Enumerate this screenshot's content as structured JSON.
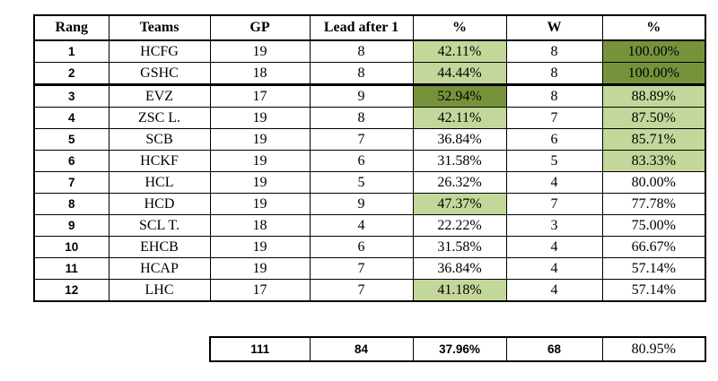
{
  "colors": {
    "light_green": "#c4d79b",
    "dark_green": "#76933c",
    "border": "#000000",
    "background": "#ffffff"
  },
  "table": {
    "headers": [
      "Rang",
      "Teams",
      "GP",
      "Lead after 1",
      "%",
      "W",
      "%"
    ],
    "rows": [
      {
        "rang": "1",
        "team": "HCFG",
        "gp": "19",
        "lead": "8",
        "pct1": "42.11%",
        "w": "8",
        "pct2": "100.00%",
        "pct1_fill": "light",
        "pct2_fill": "dark",
        "thick_bottom": false
      },
      {
        "rang": "2",
        "team": "GSHC",
        "gp": "18",
        "lead": "8",
        "pct1": "44.44%",
        "w": "8",
        "pct2": "100.00%",
        "pct1_fill": "light",
        "pct2_fill": "dark",
        "thick_bottom": true
      },
      {
        "rang": "3",
        "team": "EVZ",
        "gp": "17",
        "lead": "9",
        "pct1": "52.94%",
        "w": "8",
        "pct2": "88.89%",
        "pct1_fill": "dark",
        "pct2_fill": "light",
        "thick_bottom": false
      },
      {
        "rang": "4",
        "team": "ZSC L.",
        "gp": "19",
        "lead": "8",
        "pct1": "42.11%",
        "w": "7",
        "pct2": "87.50%",
        "pct1_fill": "light",
        "pct2_fill": "light",
        "thick_bottom": false
      },
      {
        "rang": "5",
        "team": "SCB",
        "gp": "19",
        "lead": "7",
        "pct1": "36.84%",
        "w": "6",
        "pct2": "85.71%",
        "pct1_fill": "none",
        "pct2_fill": "light",
        "thick_bottom": false
      },
      {
        "rang": "6",
        "team": "HCKF",
        "gp": "19",
        "lead": "6",
        "pct1": "31.58%",
        "w": "5",
        "pct2": "83.33%",
        "pct1_fill": "none",
        "pct2_fill": "light",
        "thick_bottom": false
      },
      {
        "rang": "7",
        "team": "HCL",
        "gp": "19",
        "lead": "5",
        "pct1": "26.32%",
        "w": "4",
        "pct2": "80.00%",
        "pct1_fill": "none",
        "pct2_fill": "none",
        "thick_bottom": false
      },
      {
        "rang": "8",
        "team": "HCD",
        "gp": "19",
        "lead": "9",
        "pct1": "47.37%",
        "w": "7",
        "pct2": "77.78%",
        "pct1_fill": "light",
        "pct2_fill": "none",
        "thick_bottom": false
      },
      {
        "rang": "9",
        "team": "SCL T.",
        "gp": "18",
        "lead": "4",
        "pct1": "22.22%",
        "w": "3",
        "pct2": "75.00%",
        "pct1_fill": "none",
        "pct2_fill": "none",
        "thick_bottom": false
      },
      {
        "rang": "10",
        "team": "EHCB",
        "gp": "19",
        "lead": "6",
        "pct1": "31.58%",
        "w": "4",
        "pct2": "66.67%",
        "pct1_fill": "none",
        "pct2_fill": "none",
        "thick_bottom": false
      },
      {
        "rang": "11",
        "team": "HCAP",
        "gp": "19",
        "lead": "7",
        "pct1": "36.84%",
        "w": "4",
        "pct2": "57.14%",
        "pct1_fill": "none",
        "pct2_fill": "none",
        "thick_bottom": false
      },
      {
        "rang": "12",
        "team": "LHC",
        "gp": "17",
        "lead": "7",
        "pct1": "41.18%",
        "w": "4",
        "pct2": "57.14%",
        "pct1_fill": "light",
        "pct2_fill": "none",
        "thick_bottom": false
      }
    ],
    "totals": {
      "gp": "111",
      "lead": "84",
      "pct1": "37.96%",
      "w": "68",
      "pct2": "80.95%"
    }
  }
}
